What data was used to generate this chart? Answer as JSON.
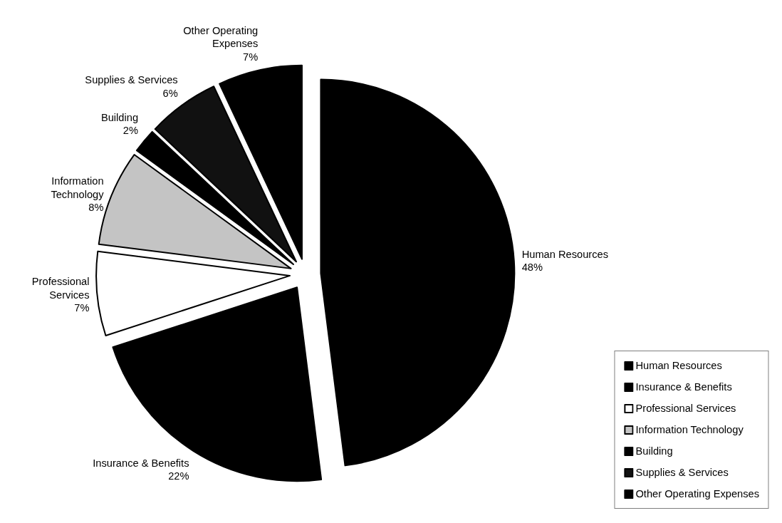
{
  "chart_data": {
    "type": "pie",
    "categories": [
      "Human Resources",
      "Insurance & Benefits",
      "Professional Services",
      "Information Technology",
      "Building",
      "Supplies & Services",
      "Other Operating Expenses"
    ],
    "values": [
      48,
      22,
      7,
      8,
      2,
      6,
      7
    ],
    "value_labels": [
      "48%",
      "22%",
      "7%",
      "8%",
      "2%",
      "6%",
      "7%"
    ],
    "colors": [
      "#000000",
      "#000000",
      "#ffffff",
      "#c4c4c4",
      "#000000",
      "#111111",
      "#000000"
    ],
    "legend": "bottom right"
  }
}
